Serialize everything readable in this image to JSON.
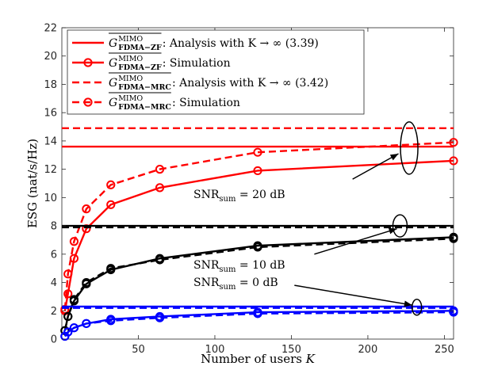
{
  "chart_data": {
    "type": "line",
    "title": "",
    "xlabel": "Number of users K",
    "ylabel": "ESG (nat/s/Hz)",
    "xlim": [
      0,
      256
    ],
    "ylim": [
      0,
      22
    ],
    "xticks": [
      50,
      100,
      150,
      200,
      250
    ],
    "yticks": [
      0,
      2,
      4,
      6,
      8,
      10,
      12,
      14,
      16,
      18,
      20,
      22
    ],
    "grid": false,
    "legend_position": "top-left",
    "legend": [
      {
        "main": "G",
        "sup": "MIMO",
        "sub": "FDMA−ZF",
        "desc": ": Analysis with K → ∞ (3.39)",
        "style": "solid",
        "marker": "none",
        "color": "#ff0000"
      },
      {
        "main": "G",
        "sup": "MIMO",
        "sub": "FDMA−ZF",
        "desc": ": Simulation",
        "style": "solid",
        "marker": "circle",
        "color": "#ff0000"
      },
      {
        "main": "G",
        "sup": "MIMO",
        "sub": "FDMA−MRC",
        "desc": ": Analysis with K → ∞ (3.42)",
        "style": "dashed",
        "marker": "none",
        "color": "#ff0000"
      },
      {
        "main": "G",
        "sup": "MIMO",
        "sub": "FDMA−MRC",
        "desc": ": Simulation",
        "style": "dashed",
        "marker": "circle",
        "color": "#ff0000"
      }
    ],
    "series": [
      {
        "name": "ZF analysis 20 dB",
        "color": "#ff0000",
        "style": "solid",
        "marker": "none",
        "x": [
          0,
          256
        ],
        "y": [
          13.6,
          13.6
        ]
      },
      {
        "name": "MRC analysis 20 dB",
        "color": "#ff0000",
        "style": "dashed",
        "marker": "none",
        "x": [
          0,
          256
        ],
        "y": [
          14.9,
          14.9
        ]
      },
      {
        "name": "ZF simulation 20 dB",
        "color": "#ff0000",
        "style": "solid",
        "marker": "circle",
        "x": [
          2,
          4,
          8,
          16,
          32,
          64,
          128,
          256
        ],
        "y": [
          2.0,
          3.2,
          5.7,
          7.8,
          9.5,
          10.7,
          11.9,
          12.6
        ]
      },
      {
        "name": "MRC simulation 20 dB",
        "color": "#ff0000",
        "style": "dashed",
        "marker": "circle",
        "x": [
          2,
          4,
          8,
          16,
          32,
          64,
          128,
          256
        ],
        "y": [
          2.1,
          4.6,
          6.9,
          9.2,
          10.9,
          12.0,
          13.2,
          13.9
        ]
      },
      {
        "name": "ZF analysis 10 dB",
        "color": "#000000",
        "style": "solid",
        "marker": "none",
        "x": [
          0,
          256
        ],
        "y": [
          8.0,
          8.0
        ]
      },
      {
        "name": "MRC analysis 10 dB",
        "color": "#000000",
        "style": "dashed",
        "marker": "none",
        "x": [
          0,
          256
        ],
        "y": [
          7.9,
          7.9
        ]
      },
      {
        "name": "ZF simulation 10 dB",
        "color": "#000000",
        "style": "solid",
        "marker": "circle",
        "x": [
          2,
          4,
          8,
          16,
          32,
          64,
          128,
          256
        ],
        "y": [
          0.6,
          1.6,
          2.7,
          3.9,
          4.9,
          5.7,
          6.6,
          7.2
        ]
      },
      {
        "name": "MRC simulation 10 dB",
        "color": "#000000",
        "style": "dashed",
        "marker": "circle",
        "x": [
          2,
          4,
          8,
          16,
          32,
          64,
          128,
          256
        ],
        "y": [
          0.6,
          1.6,
          2.8,
          4.0,
          5.0,
          5.6,
          6.5,
          7.1
        ]
      },
      {
        "name": "ZF analysis 0 dB",
        "color": "#0000ff",
        "style": "solid",
        "marker": "none",
        "x": [
          0,
          256
        ],
        "y": [
          2.3,
          2.3
        ]
      },
      {
        "name": "MRC analysis 0 dB",
        "color": "#0000ff",
        "style": "dashed",
        "marker": "none",
        "x": [
          0,
          256
        ],
        "y": [
          2.2,
          2.2
        ]
      },
      {
        "name": "ZF simulation 0 dB",
        "color": "#0000ff",
        "style": "solid",
        "marker": "circle",
        "x": [
          2,
          4,
          8,
          16,
          32,
          64,
          128,
          256
        ],
        "y": [
          0.2,
          0.5,
          0.8,
          1.1,
          1.4,
          1.6,
          1.9,
          2.0
        ]
      },
      {
        "name": "MRC simulation 0 dB",
        "color": "#0000ff",
        "style": "dashed",
        "marker": "circle",
        "x": [
          2,
          4,
          8,
          16,
          32,
          64,
          128,
          256
        ],
        "y": [
          0.2,
          0.5,
          0.8,
          1.1,
          1.3,
          1.5,
          1.8,
          1.9
        ]
      }
    ],
    "annotations": [
      {
        "main": "SNR",
        "sub": "sum",
        "rest": " = 20 dB",
        "ellipse_center": [
          227,
          13.5
        ],
        "arrow_from": [
          190,
          11.3
        ],
        "arrow_to": [
          220,
          13.1
        ]
      },
      {
        "main": "SNR",
        "sub": "sum",
        "rest": " = 10 dB",
        "ellipse_center": [
          221,
          8.0
        ],
        "arrow_from": [
          165,
          6.0
        ],
        "arrow_to": [
          219,
          7.8
        ]
      },
      {
        "main": "SNR",
        "sub": "sum",
        "rest": " = 0 dB",
        "ellipse_center": [
          232,
          2.25
        ],
        "arrow_from": [
          152,
          3.8
        ],
        "arrow_to": [
          229,
          2.4
        ]
      }
    ]
  }
}
